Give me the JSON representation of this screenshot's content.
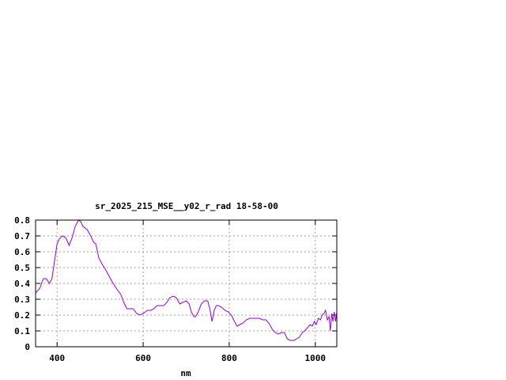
{
  "chart_data": {
    "type": "line",
    "title": "sr_2025_215_MSE__y02_r_rad 18-58-00",
    "xlabel": "nm",
    "ylabel": "",
    "xlim": [
      350,
      1050
    ],
    "ylim": [
      0,
      0.8
    ],
    "x_ticks": [
      400,
      600,
      800,
      1000
    ],
    "y_ticks": [
      0,
      0.1,
      0.2,
      0.3,
      0.4,
      0.5,
      0.6,
      0.7,
      0.8
    ],
    "x_tick_labels": [
      "400",
      "600",
      "800",
      "1000"
    ],
    "y_tick_labels": [
      "0",
      "0.1",
      "0.2",
      "0.3",
      "0.4",
      "0.5",
      "0.6",
      "0.7",
      "0.8"
    ],
    "grid": true,
    "line_color": "#9400d3",
    "series": [
      {
        "x": [
          350,
          360,
          368,
          375,
          382,
          388,
          395,
          400,
          405,
          412,
          420,
          428,
          435,
          442,
          450,
          455,
          460,
          470,
          478,
          485,
          490,
          497,
          505,
          512,
          520,
          530,
          540,
          548,
          555,
          562,
          570,
          577,
          585,
          592,
          600,
          610,
          618,
          625,
          632,
          640,
          648,
          655,
          662,
          670,
          677,
          685,
          692,
          700,
          707,
          712,
          718,
          722,
          728,
          735,
          742,
          750,
          755,
          760,
          765,
          770,
          775,
          782,
          790,
          798,
          805,
          812,
          818,
          825,
          832,
          840,
          848,
          855,
          862,
          870,
          878,
          885,
          892,
          900,
          907,
          914,
          922,
          928,
          935,
          942,
          950,
          957,
          963,
          970,
          975,
          982,
          988,
          993,
          998,
          1002,
          1007,
          1012,
          1016,
          1020,
          1024,
          1028,
          1032,
          1035,
          1038,
          1041,
          1044,
          1047,
          1050
        ],
        "y": [
          0.34,
          0.37,
          0.43,
          0.43,
          0.4,
          0.43,
          0.56,
          0.65,
          0.68,
          0.7,
          0.69,
          0.64,
          0.69,
          0.76,
          0.8,
          0.79,
          0.76,
          0.74,
          0.7,
          0.66,
          0.65,
          0.56,
          0.52,
          0.49,
          0.45,
          0.4,
          0.36,
          0.33,
          0.28,
          0.24,
          0.24,
          0.24,
          0.21,
          0.2,
          0.21,
          0.23,
          0.23,
          0.24,
          0.26,
          0.26,
          0.26,
          0.28,
          0.31,
          0.32,
          0.31,
          0.27,
          0.28,
          0.29,
          0.27,
          0.22,
          0.19,
          0.19,
          0.22,
          0.27,
          0.29,
          0.29,
          0.24,
          0.16,
          0.23,
          0.26,
          0.26,
          0.25,
          0.23,
          0.22,
          0.2,
          0.16,
          0.13,
          0.14,
          0.15,
          0.17,
          0.18,
          0.18,
          0.18,
          0.18,
          0.17,
          0.17,
          0.15,
          0.11,
          0.09,
          0.08,
          0.09,
          0.09,
          0.05,
          0.04,
          0.04,
          0.05,
          0.06,
          0.09,
          0.1,
          0.12,
          0.14,
          0.13,
          0.16,
          0.14,
          0.18,
          0.17,
          0.2,
          0.21,
          0.23,
          0.17,
          0.19,
          0.1,
          0.21,
          0.16,
          0.22,
          0.16,
          0.22
        ]
      }
    ]
  }
}
